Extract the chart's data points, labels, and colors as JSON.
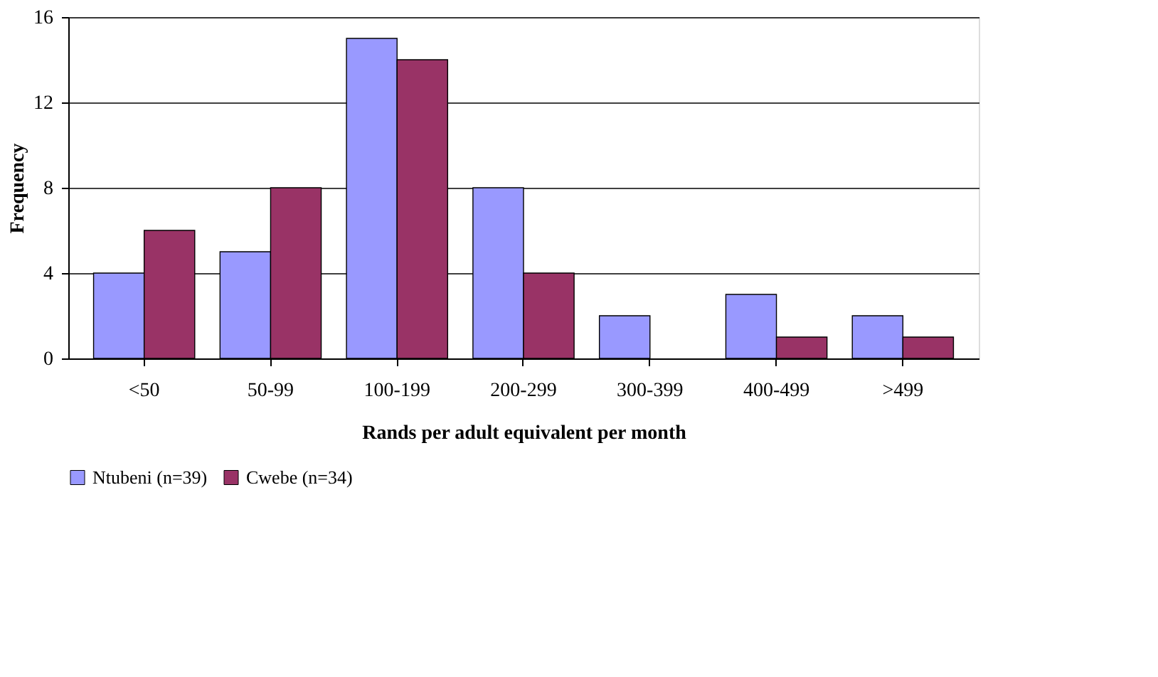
{
  "chart_data": {
    "type": "bar",
    "xlabel": "Rands per adult equivalent per month",
    "ylabel": "Frequency",
    "categories": [
      "<50",
      "50-99",
      "100-199",
      "200-299",
      "300-399",
      "400-499",
      ">499"
    ],
    "series": [
      {
        "name": "Ntubeni (n=39)",
        "color": "#9999ff",
        "values": [
          4,
          5,
          15,
          8,
          2,
          3,
          2
        ]
      },
      {
        "name": "Cwebe (n=34)",
        "color": "#993366",
        "values": [
          6,
          8,
          14,
          4,
          0,
          1,
          1
        ]
      }
    ],
    "ylim": [
      0,
      16
    ],
    "yticks": [
      0,
      4,
      8,
      12,
      16
    ],
    "grid": "y",
    "legend": "bottom"
  }
}
